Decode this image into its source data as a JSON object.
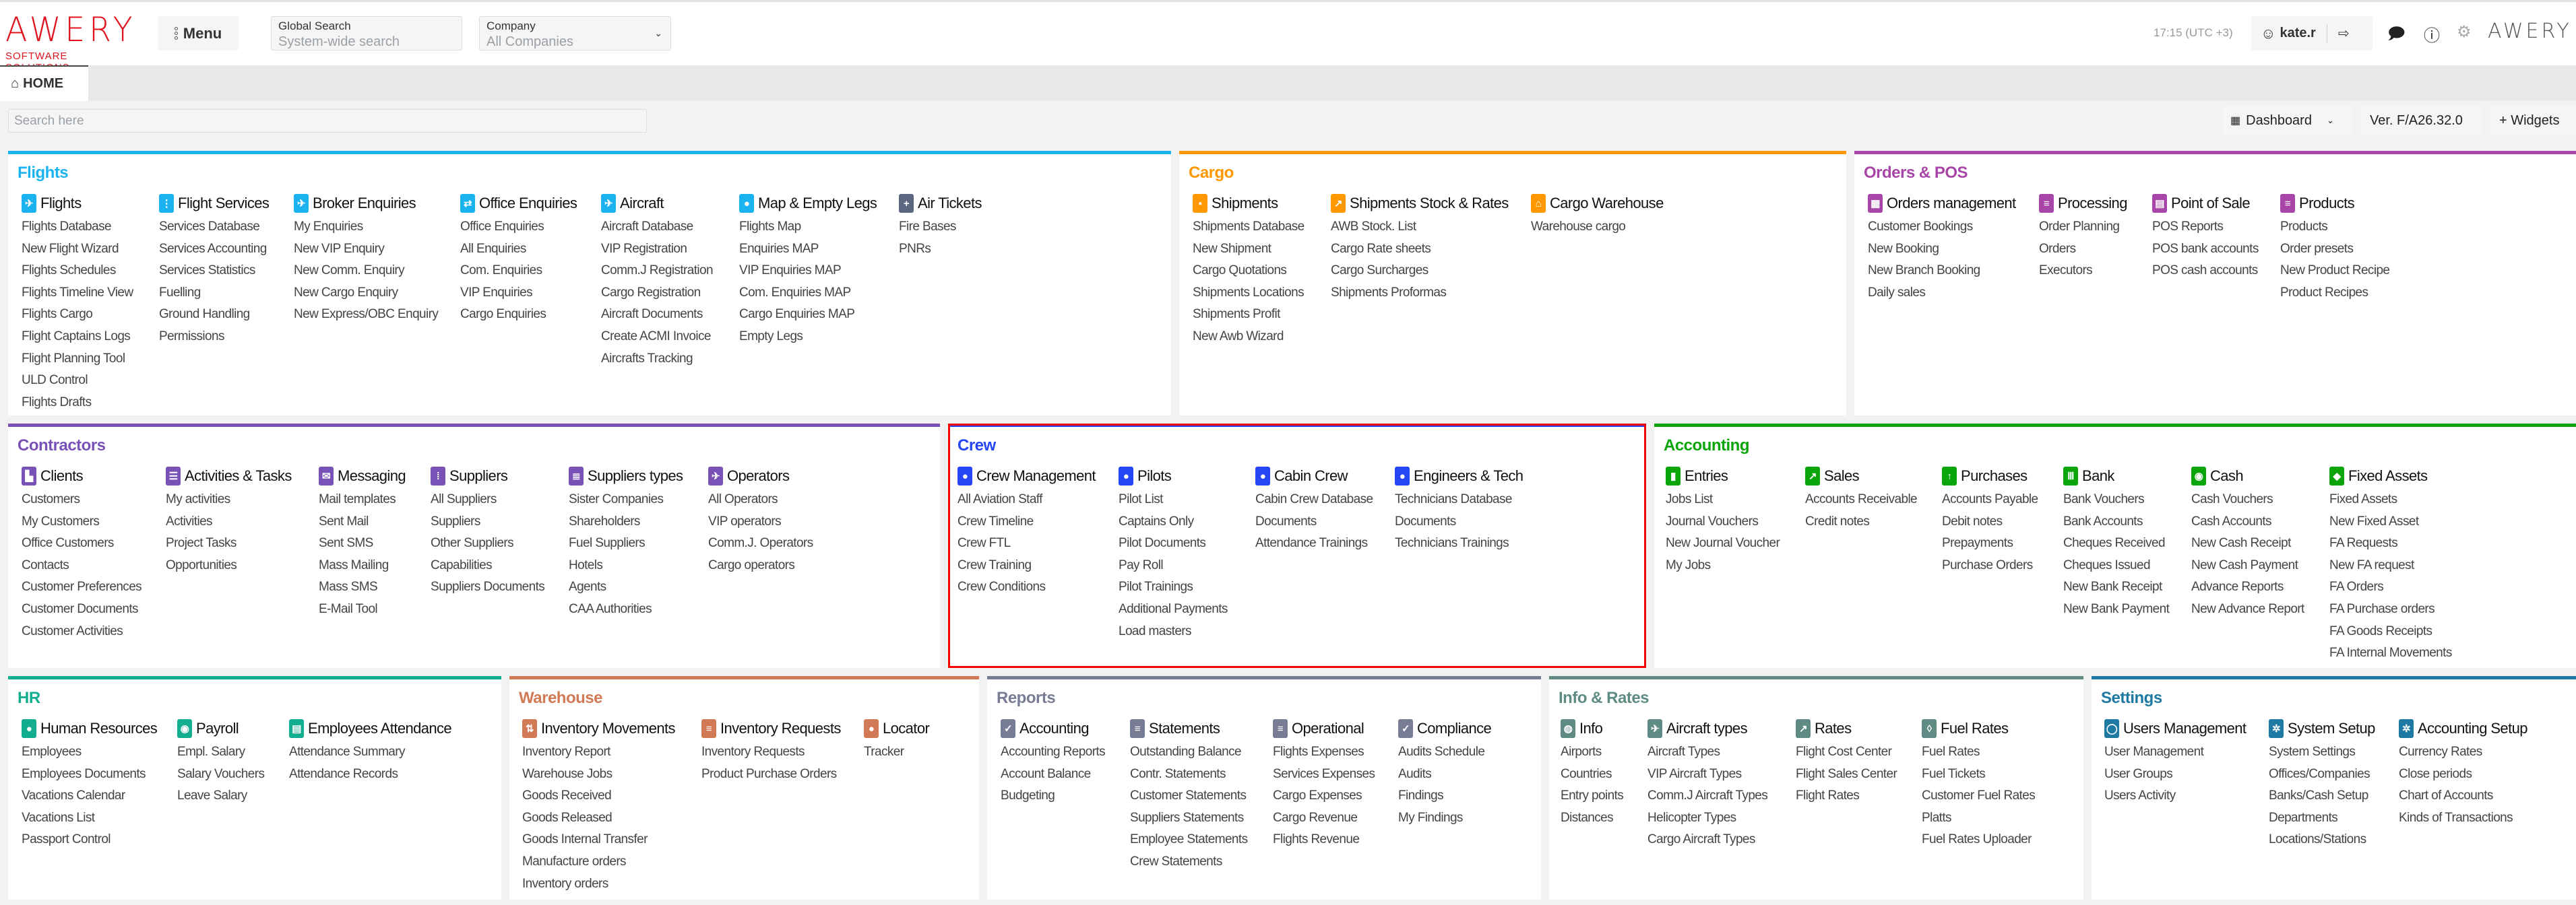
{
  "header": {
    "logo_text": "AWERY",
    "logo_subtext": "SOFTWARE SOLUTIONS",
    "menu_label": "Menu",
    "global_search": {
      "label": "Global Search",
      "placeholder": "System-wide search"
    },
    "company": {
      "label": "Company",
      "value": "All Companies"
    },
    "time": "17:15 (UTC +3)",
    "username": "kate.r",
    "icons": [
      "chat-icon",
      "info-icon",
      "gear-icon",
      "logout-icon",
      "user-icon"
    ],
    "brand_text": "AWERY"
  },
  "tabs": [
    {
      "label": "HOME",
      "icon": "home-icon"
    }
  ],
  "search": {
    "placeholder": "Search here"
  },
  "toolbar": {
    "dashboard_label": "Dashboard",
    "version_label": "Ver. F/A26.32.0",
    "widgets_label": "+ Widgets"
  },
  "panels": [
    {
      "title": "Flights",
      "color": "#1ab3f0",
      "columns": [
        {
          "header": "Flights",
          "icon": "airplane-circle-icon",
          "items": [
            "Flights Database",
            "New Flight Wizard",
            "Flights Schedules",
            "Flights Timeline View",
            "Flights Cargo",
            "Flight Captains Logs",
            "Flight Planning Tool",
            "ULD Control",
            "Flights Drafts"
          ]
        },
        {
          "header": "Flight Services",
          "icon": "airport-services-icon",
          "items": [
            "Services Database",
            "Services Accounting",
            "Services Statistics",
            "Fuelling",
            "Ground Handling",
            "Permissions"
          ]
        },
        {
          "header": "Broker Enquiries",
          "icon": "broker-enquiry-icon",
          "items": [
            "My Enquiries",
            "New VIP Enquiry",
            "New Comm. Enquiry",
            "New Cargo Enquiry",
            "New Express/OBC Enquiry"
          ]
        },
        {
          "header": "Office Enquiries",
          "icon": "office-enquiry-icon",
          "items": [
            "Office Enquiries",
            "All Enquiries",
            "Com. Enquiries",
            "VIP Enquiries",
            "Cargo Enquiries"
          ]
        },
        {
          "header": "Aircraft",
          "icon": "aircraft-icon",
          "items": [
            "Aircraft Database",
            "VIP Registration",
            "Comm.J Registration",
            "Cargo Registration",
            "Aircraft Documents",
            "Create ACMI Invoice",
            "Aircrafts Tracking"
          ]
        },
        {
          "header": "Map & Empty Legs",
          "icon": "map-pin-icon",
          "items": [
            "Flights Map",
            "Enquiries MAP",
            "VIP Enquiries MAP",
            "Com. Enquiries MAP",
            "Cargo Enquiries MAP",
            "Empty Legs"
          ]
        },
        {
          "header": "Air Tickets",
          "icon": "ticket-icon",
          "icon_color": "#5b6680",
          "items": [
            "Fire Bases",
            "PNRs"
          ]
        }
      ]
    },
    {
      "title": "Cargo",
      "color": "#ff9800",
      "columns": [
        {
          "header": "Shipments",
          "icon": "box-icon",
          "items": [
            "Shipments Database",
            "New Shipment",
            "Cargo Quotations",
            "Shipments Locations",
            "Shipments Profit",
            "New Awb Wizard"
          ]
        },
        {
          "header": "Shipments Stock & Rates",
          "icon": "chart-hexagon-icon",
          "items": [
            "AWB Stock. List",
            "Cargo Rate sheets",
            "Cargo Surcharges",
            "Shipments Proformas"
          ]
        },
        {
          "header": "Cargo Warehouse",
          "icon": "warehouse-icon",
          "items": [
            "Warehouse cargo"
          ]
        }
      ]
    },
    {
      "title": "Orders & POS",
      "color": "#a845a8",
      "columns": [
        {
          "header": "Orders management",
          "icon": "grid-icon",
          "items": [
            "Customer Bookings",
            "New Booking",
            "New Branch Booking",
            "Daily sales"
          ]
        },
        {
          "header": "Processing",
          "icon": "list-icon",
          "items": [
            "Order Planning",
            "Orders",
            "Executors"
          ]
        },
        {
          "header": "Point of Sale",
          "icon": "pos-terminal-icon",
          "items": [
            "POS Reports",
            "POS bank accounts",
            "POS cash accounts"
          ]
        },
        {
          "header": "Products",
          "icon": "product-icon",
          "items": [
            "Products",
            "Order presets",
            "New Product Recipe",
            "Product Recipes"
          ]
        }
      ]
    },
    {
      "title": "Contractors",
      "color": "#7952b8",
      "columns": [
        {
          "header": "Clients",
          "icon": "building-icon",
          "items": [
            "Customers",
            "My Customers",
            "Office Customers",
            "Contacts",
            "Customer Preferences",
            "Customer Documents",
            "Customer Activities"
          ]
        },
        {
          "header": "Activities & Tasks",
          "icon": "checklist-icon",
          "items": [
            "My activities",
            "Activities",
            "Project Tasks",
            "Opportunities"
          ]
        },
        {
          "header": "Messaging",
          "icon": "mail-icon",
          "items": [
            "Mail templates",
            "Sent Mail",
            "Sent SMS",
            "Mass Mailing",
            "Mass SMS",
            "E-Mail Tool"
          ]
        },
        {
          "header": "Suppliers",
          "icon": "office-building-icon",
          "items": [
            "All Suppliers",
            "Suppliers",
            "Other Suppliers",
            "Capabilities",
            "Suppliers Documents"
          ]
        },
        {
          "header": "Suppliers types",
          "icon": "stack-icon",
          "items": [
            "Sister Companies",
            "Shareholders",
            "Fuel Suppliers",
            "Hotels",
            "Agents",
            "CAA Authorities"
          ]
        },
        {
          "header": "Operators",
          "icon": "operator-icon",
          "items": [
            "All Operators",
            "VIP operators",
            "Comm.J. Operators",
            "Cargo operators"
          ]
        }
      ]
    },
    {
      "title": "Crew",
      "color": "#2446f5",
      "highlighted": true,
      "columns": [
        {
          "header": "Crew Management",
          "icon": "person-icon",
          "items": [
            "All Aviation Staff",
            "Crew Timeline",
            "Crew FTL",
            "Crew Training",
            "Crew Conditions"
          ]
        },
        {
          "header": "Pilots",
          "icon": "pilot-icon",
          "items": [
            "Pilot List",
            "Captains Only",
            "Pilot Documents",
            "Pay Roll",
            "Pilot Trainings",
            "Additional Payments",
            "Load masters"
          ]
        },
        {
          "header": "Cabin Crew",
          "icon": "cabin-crew-icon",
          "items": [
            "Cabin Crew Database",
            "Documents",
            "Attendance Trainings"
          ]
        },
        {
          "header": "Engineers & Tech",
          "icon": "engineer-icon",
          "items": [
            "Technicians Database",
            "Documents",
            "Technicians Trainings"
          ]
        }
      ]
    },
    {
      "title": "Accounting",
      "color": "#0aa50a",
      "columns": [
        {
          "header": "Entries",
          "icon": "folder-icon",
          "items": [
            "Jobs List",
            "Journal Vouchers",
            "New Journal Voucher",
            "My Jobs"
          ]
        },
        {
          "header": "Sales",
          "icon": "sales-doc-icon",
          "items": [
            "Accounts Receivable",
            "Credit notes"
          ]
        },
        {
          "header": "Purchases",
          "icon": "receipt-icon",
          "items": [
            "Accounts Payable",
            "Debit notes",
            "Prepayments",
            "Purchase Orders"
          ]
        },
        {
          "header": "Bank",
          "icon": "bank-icon",
          "items": [
            "Bank Vouchers",
            "Bank Accounts",
            "Cheques Received",
            "Cheques Issued",
            "New Bank Receipt",
            "New Bank Payment"
          ]
        },
        {
          "header": "Cash",
          "icon": "cash-icon",
          "items": [
            "Cash Vouchers",
            "Cash Accounts",
            "New Cash Receipt",
            "New Cash Payment",
            "Advance Reports",
            "New Advance Report"
          ]
        },
        {
          "header": "Fixed Assets",
          "icon": "gem-icon",
          "items": [
            "Fixed Assets",
            "New Fixed Asset",
            "FA Requests",
            "New FA request",
            "FA Orders",
            "FA Purchase orders",
            "FA Goods Receipts",
            "FA Internal Movements"
          ]
        }
      ]
    },
    {
      "title": "HR",
      "color": "#13ae8f",
      "columns": [
        {
          "header": "Human Resources",
          "icon": "people-icon",
          "items": [
            "Employees",
            "Employees Documents",
            "Vacations Calendar",
            "Vacations List",
            "Passport Control"
          ]
        },
        {
          "header": "Payroll",
          "icon": "payroll-icon",
          "items": [
            "Empl. Salary",
            "Salary Vouchers",
            "Leave Salary"
          ]
        },
        {
          "header": "Employees Attendance",
          "icon": "attendance-icon",
          "items": [
            "Attendance Summary",
            "Attendance Records"
          ]
        }
      ]
    },
    {
      "title": "Warehouse",
      "color": "#d27a55",
      "columns": [
        {
          "header": "Inventory Movements",
          "icon": "warehouse-move-icon",
          "items": [
            "Inventory Report",
            "Warehouse Jobs",
            "Goods Received",
            "Goods Released",
            "Goods Internal Transfer",
            "Manufacture orders",
            "Inventory orders"
          ]
        },
        {
          "header": "Inventory Requests",
          "icon": "request-doc-icon",
          "items": [
            "Inventory Requests",
            "Product Purchase Orders"
          ]
        },
        {
          "header": "Locator",
          "icon": "location-pin-icon",
          "items": [
            "Tracker"
          ]
        }
      ]
    },
    {
      "title": "Reports",
      "color": "#787c95",
      "columns": [
        {
          "header": "Accounting",
          "icon": "report-check-icon",
          "items": [
            "Accounting Reports",
            "Account Balance",
            "Budgeting"
          ]
        },
        {
          "header": "Statements",
          "icon": "statement-icon",
          "items": [
            "Outstanding Balance",
            "Contr. Statements",
            "Customer Statements",
            "Suppliers Statements",
            "Employee Statements",
            "Crew Statements"
          ]
        },
        {
          "header": "Operational",
          "icon": "report-list-icon",
          "items": [
            "Flights Expenses",
            "Services Expenses",
            "Cargo Expenses",
            "Cargo Revenue",
            "Flights Revenue"
          ]
        },
        {
          "header": "Compliance",
          "icon": "clipboard-check-icon",
          "items": [
            "Audits Schedule",
            "Audits",
            "Findings",
            "My Findings"
          ]
        }
      ]
    },
    {
      "title": "Info & Rates",
      "color": "#5f8b85",
      "columns": [
        {
          "header": "Info",
          "icon": "globe-icon",
          "items": [
            "Airports",
            "Countries",
            "Entry points",
            "Distances"
          ]
        },
        {
          "header": "Aircraft types",
          "icon": "aircraft-top-icon",
          "items": [
            "Aircraft Types",
            "VIP Aircraft Types",
            "Comm.J Aircraft Types",
            "Helicopter Types",
            "Cargo Aircraft Types"
          ]
        },
        {
          "header": "Rates",
          "icon": "rates-chart-icon",
          "items": [
            "Flight Cost Center",
            "Flight Sales Center",
            "Flight Rates"
          ]
        },
        {
          "header": "Fuel Rates",
          "icon": "fuel-drop-icon",
          "items": [
            "Fuel Rates",
            "Fuel Tickets",
            "Customer Fuel Rates",
            "Platts",
            "Fuel Rates Uploader"
          ]
        }
      ]
    },
    {
      "title": "Settings",
      "color": "#1f7aa3",
      "columns": [
        {
          "header": "Users Management",
          "icon": "user-circle-icon",
          "items": [
            "User Management",
            "User Groups",
            "Users Activity"
          ]
        },
        {
          "header": "System Setup",
          "icon": "cog-icon",
          "items": [
            "System Settings",
            "Offices/Companies",
            "Banks/Cash Setup",
            "Departments",
            "Locations/Stations"
          ]
        },
        {
          "header": "Accounting Setup",
          "icon": "accounting-cog-icon",
          "items": [
            "Currency Rates",
            "Close periods",
            "Chart of Accounts",
            "Kinds of Transactions"
          ]
        }
      ]
    }
  ]
}
